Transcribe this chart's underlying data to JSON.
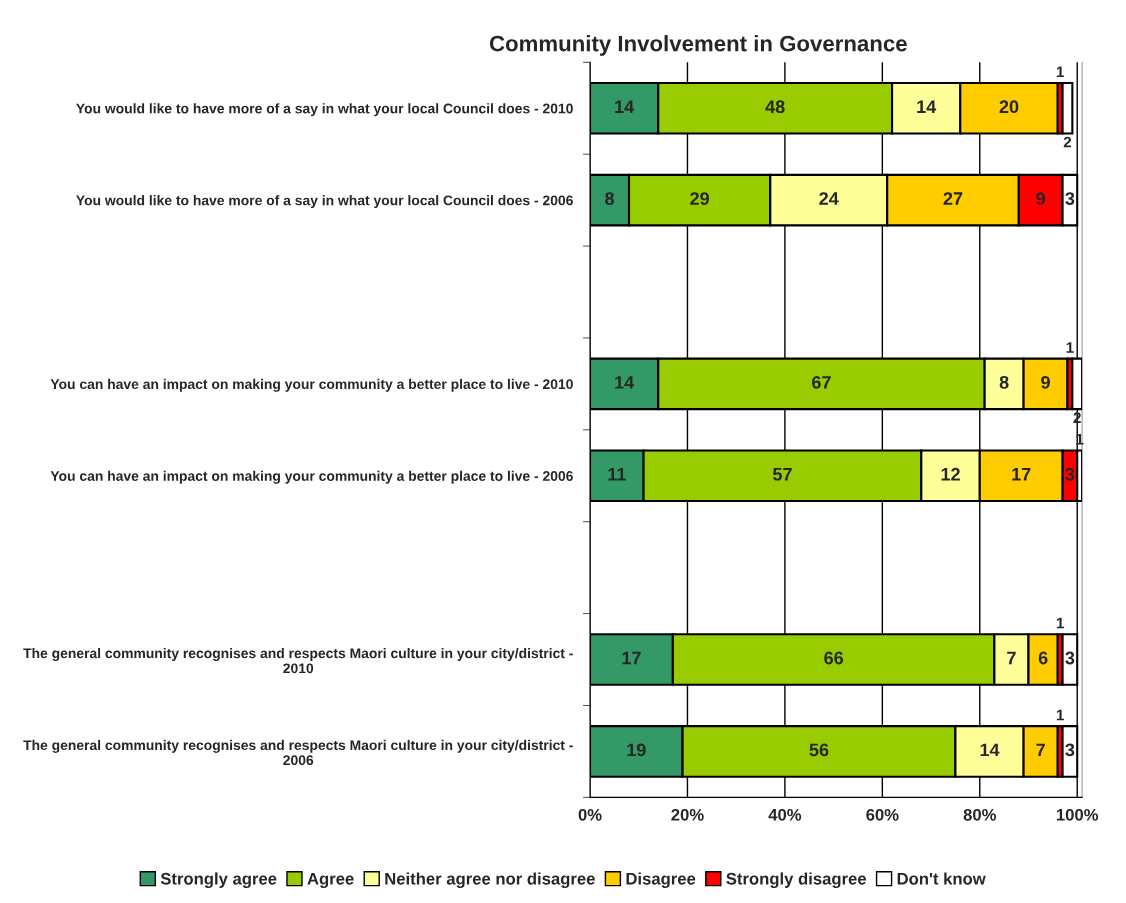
{
  "chart_data": {
    "type": "bar",
    "orientation": "horizontal",
    "stacked": true,
    "title": "Community Involvement in Governance",
    "categories": [
      "You would like to have more of a say in what your local Council does - 2010",
      "You would like to have more of a say in what your local Council does - 2006",
      null,
      "You can have an impact on making your community a better place to live - 2010",
      "You can have an impact on making your community a better place to live - 2006",
      null,
      "The general community recognises and respects Maori culture in your city/district - 2010",
      "The general community recognises and respects Maori culture in your city/district - 2006"
    ],
    "series": [
      {
        "name": "Strongly agree",
        "color": "#339966",
        "values": [
          14,
          8,
          null,
          14,
          11,
          null,
          17,
          19
        ]
      },
      {
        "name": "Agree",
        "color": "#99cc00",
        "values": [
          48,
          29,
          null,
          67,
          57,
          null,
          66,
          56
        ]
      },
      {
        "name": "Neither agree nor disagree",
        "color": "#ffff99",
        "values": [
          14,
          24,
          null,
          8,
          12,
          null,
          7,
          14
        ]
      },
      {
        "name": "Disagree",
        "color": "#ffcc00",
        "values": [
          20,
          27,
          null,
          9,
          17,
          null,
          6,
          7
        ]
      },
      {
        "name": "Strongly disagree",
        "color": "#ff0000",
        "values": [
          1,
          9,
          null,
          1,
          3,
          null,
          1,
          1
        ]
      },
      {
        "name": "Don't know",
        "color": "#ffffff",
        "values": [
          2,
          3,
          null,
          2,
          1,
          null,
          3,
          3
        ]
      }
    ],
    "xlim": [
      0,
      101
    ],
    "xticks": [
      {
        "value": 0,
        "label": "0%"
      },
      {
        "value": 20,
        "label": "20%"
      },
      {
        "value": 40,
        "label": "40%"
      },
      {
        "value": 60,
        "label": "60%"
      },
      {
        "value": 80,
        "label": "80%"
      },
      {
        "value": 100,
        "label": "100%"
      }
    ],
    "grid": "x",
    "legend": "bottom",
    "data_labels": true
  }
}
